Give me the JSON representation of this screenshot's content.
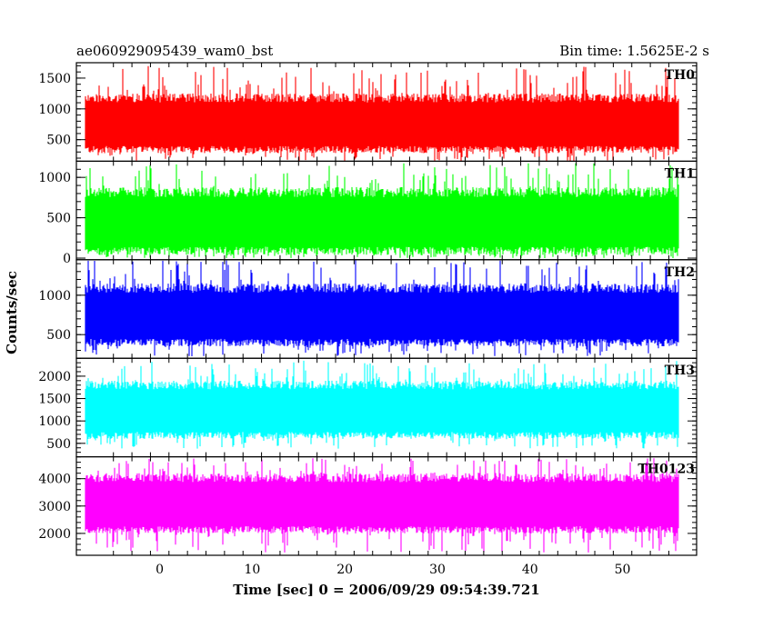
{
  "chart_data": {
    "type": "line",
    "title_left": "ae060929095439_wam0_bst",
    "title_right": "Bin time: 1.5625E-2 s",
    "xlabel": "Time [sec] 0 = 2006/09/29 09:54:39.721",
    "ylabel": "Counts/sec",
    "xlim": [
      -9,
      58
    ],
    "x_ticks": [
      0,
      10,
      20,
      30,
      40,
      50
    ],
    "x_tick_labels": [
      "0",
      "10",
      "20",
      "30",
      "40",
      "50"
    ],
    "data_x_range": [
      -8,
      56
    ],
    "grid": false,
    "panels": [
      {
        "name": "TH0",
        "color": "#ff0000",
        "ylim": [
          150,
          1750
        ],
        "y_ticks": [
          500,
          1000,
          1500
        ],
        "y_tick_labels": [
          "500",
          "1000",
          "1500"
        ],
        "mean": 800,
        "low": 280,
        "high": 1250,
        "max_spike": 1700,
        "min_dip": 150
      },
      {
        "name": "TH1",
        "color": "#00ff00",
        "ylim": [
          -20,
          1200
        ],
        "y_ticks": [
          0,
          500,
          1000
        ],
        "y_tick_labels": [
          "0",
          "500",
          "1000"
        ],
        "mean": 450,
        "low": 40,
        "high": 880,
        "max_spike": 1180,
        "min_dip": 0
      },
      {
        "name": "TH2",
        "color": "#0000ff",
        "ylim": [
          200,
          1450
        ],
        "y_ticks": [
          500,
          1000
        ],
        "y_tick_labels": [
          "500",
          "1000"
        ],
        "mean": 750,
        "low": 350,
        "high": 1150,
        "max_spike": 1450,
        "min_dip": 220
      },
      {
        "name": "TH3",
        "color": "#00ffff",
        "ylim": [
          200,
          2400
        ],
        "y_ticks": [
          500,
          1000,
          1500,
          2000
        ],
        "y_tick_labels": [
          "500",
          "1000",
          "1500",
          "2000"
        ],
        "mean": 1250,
        "low": 600,
        "high": 1900,
        "max_spike": 2350,
        "min_dip": 380
      },
      {
        "name": "TH0123",
        "color": "#ff00ff",
        "ylim": [
          1200,
          4800
        ],
        "y_ticks": [
          2000,
          3000,
          4000
        ],
        "y_tick_labels": [
          "2000",
          "3000",
          "4000"
        ],
        "mean": 3100,
        "low": 2000,
        "high": 4200,
        "max_spike": 4750,
        "min_dip": 1300
      }
    ]
  }
}
